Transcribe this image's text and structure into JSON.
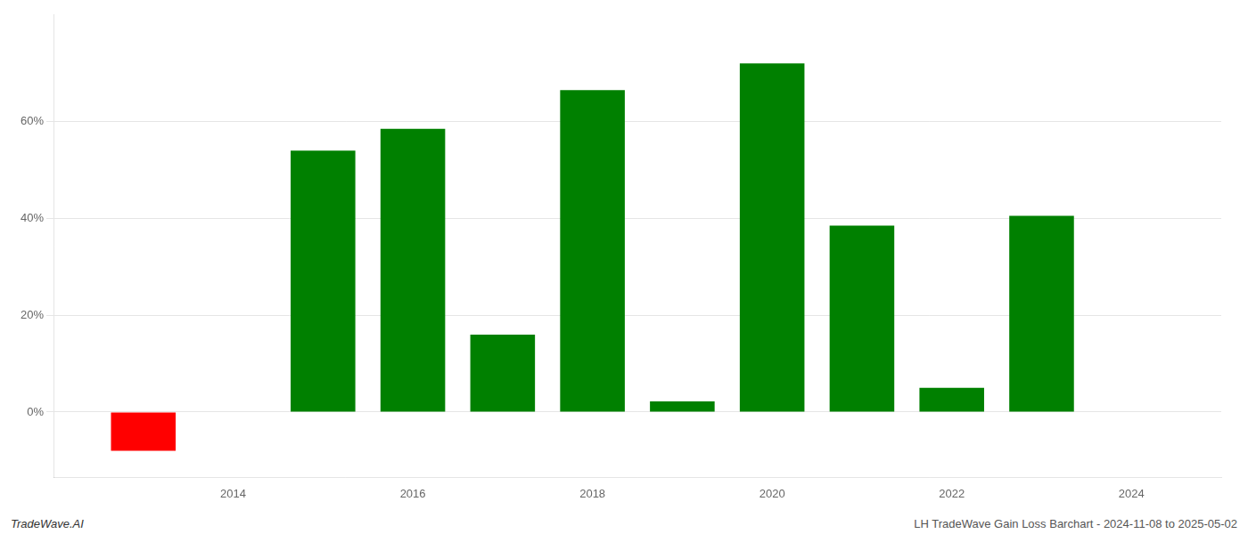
{
  "chart_data": {
    "type": "bar",
    "x": [
      2013,
      2015,
      2016,
      2017,
      2018,
      2019,
      2020,
      2021,
      2022,
      2023
    ],
    "values": [
      -0.08,
      0.54,
      0.585,
      0.16,
      0.665,
      0.022,
      0.72,
      0.385,
      0.05,
      0.405
    ],
    "colors": [
      "#ff0000",
      "#008000",
      "#008000",
      "#008000",
      "#008000",
      "#008000",
      "#008000",
      "#008000",
      "#008000",
      "#008000"
    ],
    "xlim": [
      2012.0,
      2025.0
    ],
    "xticks": [
      2014,
      2016,
      2018,
      2020,
      2022,
      2024
    ],
    "ylim": [
      -0.135,
      0.82
    ],
    "yticks": [
      {
        "value": 0.0,
        "label": "0%"
      },
      {
        "value": 0.2,
        "label": "20%"
      },
      {
        "value": 0.4,
        "label": "40%"
      },
      {
        "value": 0.6,
        "label": "60%"
      }
    ],
    "grid": "y",
    "annotations": [
      "TradeWave.AI",
      "LH TradeWave Gain Loss Barchart - 2024-11-08 to 2025-05-02"
    ]
  }
}
